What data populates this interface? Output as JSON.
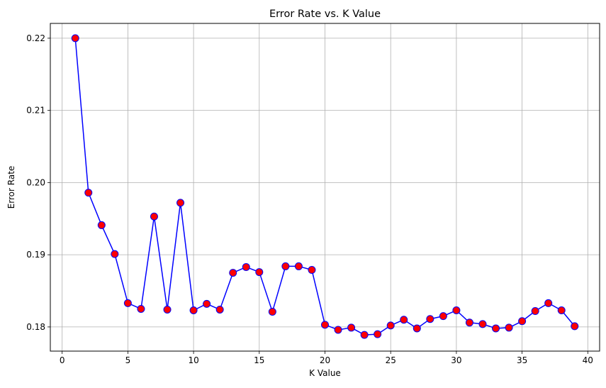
{
  "chart_data": {
    "type": "line",
    "title": "Error Rate vs. K Value",
    "xlabel": "K Value",
    "ylabel": "Error Rate",
    "xlim": [
      -0.9,
      40.9
    ],
    "ylim": [
      0.17665,
      0.22205
    ],
    "grid": true,
    "line_color": "#0000ff",
    "marker_face": "#ff0000",
    "marker_edge": "#0000ff",
    "x_ticks": [
      0,
      5,
      10,
      15,
      20,
      25,
      30,
      35,
      40
    ],
    "y_ticks": [
      0.18,
      0.19,
      0.2,
      0.21,
      0.22
    ],
    "x_tick_labels": [
      "0",
      "5",
      "10",
      "15",
      "20",
      "25",
      "30",
      "35",
      "40"
    ],
    "y_tick_labels": [
      "0.18",
      "0.19",
      "0.20",
      "0.21",
      "0.22"
    ],
    "series": [
      {
        "x": [
          1,
          2,
          3,
          4,
          5,
          6,
          7,
          8,
          9,
          10,
          11,
          12,
          13,
          14,
          15,
          16,
          17,
          18,
          19,
          20,
          21,
          22,
          23,
          24,
          25,
          26,
          27,
          28,
          29,
          30,
          31,
          32,
          33,
          34,
          35,
          36,
          37,
          38,
          39
        ],
        "values": [
          0.22,
          0.1986,
          0.1941,
          0.1901,
          0.1833,
          0.1825,
          0.1953,
          0.1824,
          0.1972,
          0.1823,
          0.1832,
          0.1824,
          0.1875,
          0.1883,
          0.1876,
          0.1821,
          0.1884,
          0.1884,
          0.1879,
          0.1803,
          0.1796,
          0.1799,
          0.1789,
          0.179,
          0.1802,
          0.181,
          0.1798,
          0.1811,
          0.1815,
          0.1823,
          0.1806,
          0.1804,
          0.1798,
          0.1799,
          0.1808,
          0.1822,
          0.1833,
          0.1823,
          0.1801
        ]
      }
    ]
  }
}
